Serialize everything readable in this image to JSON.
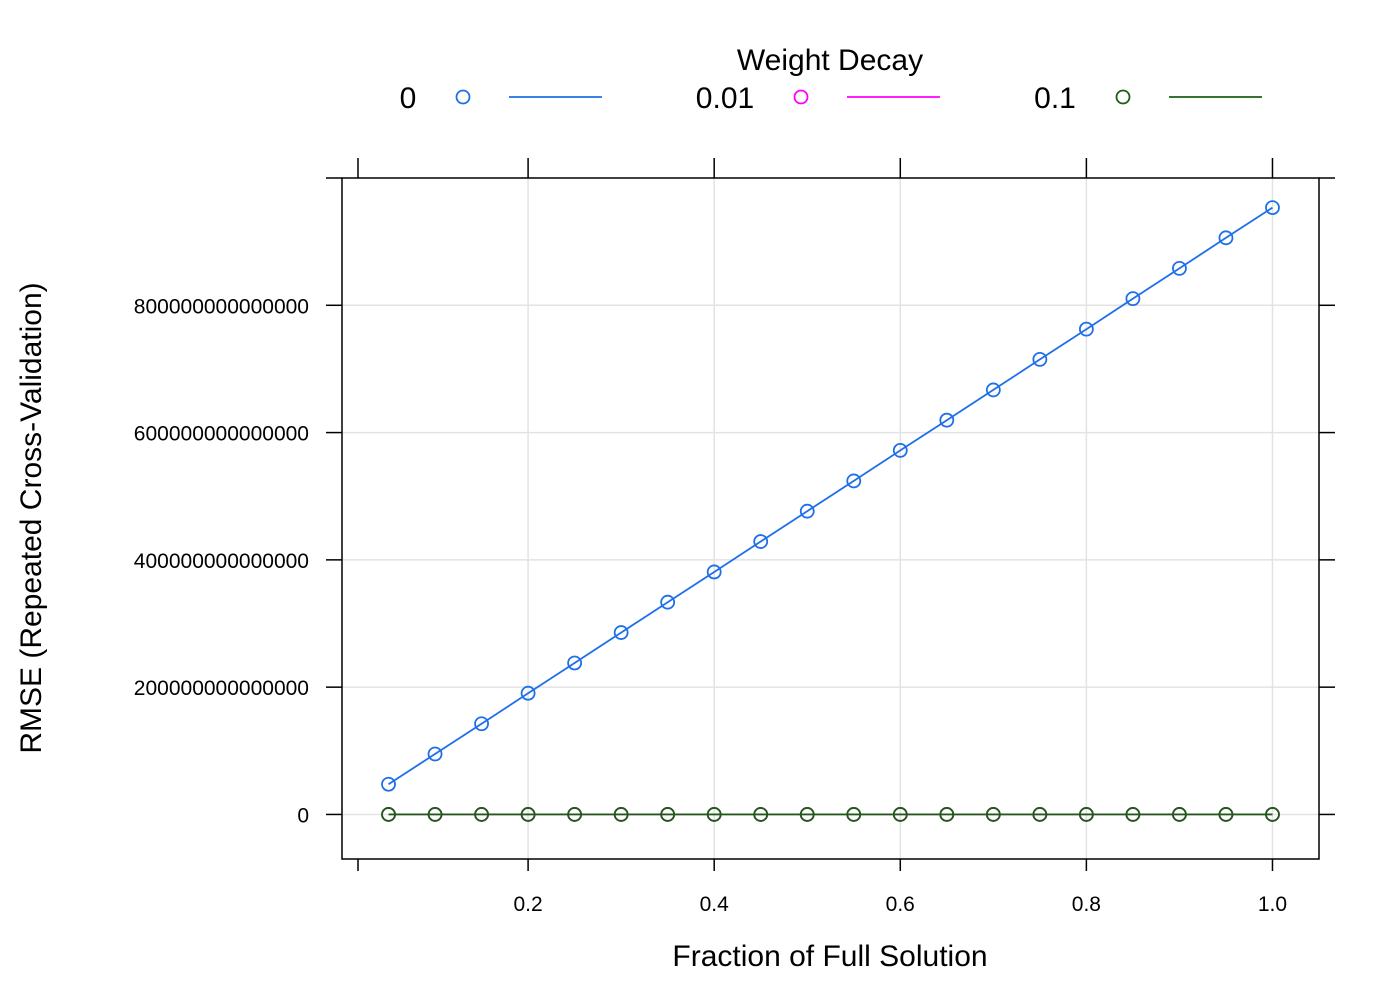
{
  "chart_data": {
    "type": "line",
    "legend": {
      "title": "Weight Decay",
      "placement": "top",
      "entries": [
        "0",
        "0.01",
        "0.1"
      ]
    },
    "xlabel": "Fraction of Full Solution",
    "ylabel": "RMSE (Repeated Cross-Validation)",
    "xlim": [
      0.0,
      1.05
    ],
    "ylim": [
      -70000000000000,
      1000000000000000
    ],
    "x_ticks": [
      0.2,
      0.4,
      0.6,
      0.8,
      1.0
    ],
    "x_tick_labels": [
      "0.2",
      "0.4",
      "0.6",
      "0.8",
      "1.0"
    ],
    "y_ticks": [
      0,
      200000000000000,
      400000000000000,
      600000000000000,
      800000000000000
    ],
    "y_tick_labels": [
      "0",
      "200000000000000",
      "400000000000000",
      "600000000000000",
      "800000000000000"
    ],
    "grid": true,
    "x": [
      0.05,
      0.1,
      0.15,
      0.2,
      0.25,
      0.3,
      0.35,
      0.4,
      0.45,
      0.5,
      0.55,
      0.6,
      0.65,
      0.7,
      0.75,
      0.8,
      0.85,
      0.9,
      0.95,
      1.0
    ],
    "series": [
      {
        "name": "0",
        "color": "#1f6fe8",
        "values": [
          47500000000000,
          95000000000000,
          142500000000000,
          190500000000000,
          238000000000000,
          285800000000000,
          333500000000000,
          381000000000000,
          428800000000000,
          476500000000000,
          524000000000000,
          572000000000000,
          619500000000000,
          667000000000000,
          715000000000000,
          762500000000000,
          810500000000000,
          858000000000000,
          906000000000000,
          953500000000000
        ]
      },
      {
        "name": "0.01",
        "color": "#ff00ff",
        "values": [
          0,
          0,
          0,
          0,
          0,
          0,
          0,
          0,
          0,
          0,
          0,
          0,
          0,
          0,
          0,
          0,
          0,
          0,
          0,
          0
        ]
      },
      {
        "name": "0.1",
        "color": "#1a5e12",
        "values": [
          0,
          0,
          0,
          0,
          0,
          0,
          0,
          0,
          0,
          0,
          0,
          0,
          0,
          0,
          0,
          0,
          0,
          0,
          0,
          0
        ]
      }
    ]
  }
}
